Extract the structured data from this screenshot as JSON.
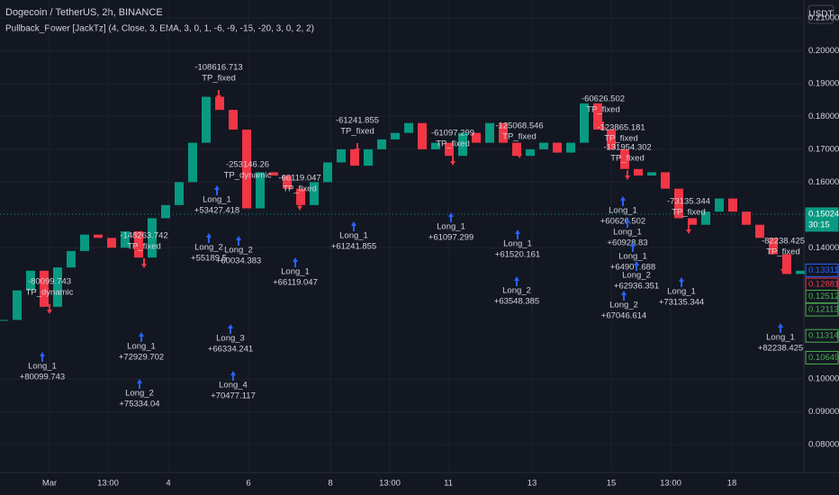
{
  "header": {
    "symbol": "Dogecoin / TetherUS, 2h, BINANCE",
    "indicator": "Pullback_Power [JackTz] (4, Close, 3, EMA, 3, 0, 1, -6, -9, -15, -20, 3, 0, 2, 2)",
    "currency": "USDT"
  },
  "chart": {
    "type": "candlestick",
    "up_color": "#089981",
    "down_color": "#f23645",
    "closes": [
      0.118,
      0.127,
      0.133,
      0.122,
      0.134,
      0.139,
      0.144,
      0.143,
      0.14,
      0.145,
      0.137,
      0.149,
      0.153,
      0.16,
      0.172,
      0.186,
      0.182,
      0.176,
      0.152,
      0.163,
      0.162,
      0.158,
      0.153,
      0.16,
      0.166,
      0.17,
      0.165,
      0.17,
      0.173,
      0.175,
      0.178,
      0.17,
      0.172,
      0.168,
      0.175,
      0.172,
      0.178,
      0.172,
      0.168,
      0.17,
      0.172,
      0.169,
      0.172,
      0.184,
      0.176,
      0.17,
      0.164,
      0.162,
      0.163,
      0.158,
      0.149,
      0.147,
      0.151,
      0.155,
      0.151,
      0.147,
      0.143,
      0.138,
      0.132,
      0.133
    ],
    "ylim": [
      0.0715,
      0.2155
    ],
    "yticks": [
      {
        "value": 0.21,
        "label": "0.21000"
      },
      {
        "value": 0.2,
        "label": "0.20000"
      },
      {
        "value": 0.19,
        "label": "0.19000"
      },
      {
        "value": 0.18,
        "label": "0.18000"
      },
      {
        "value": 0.17,
        "label": "0.17000"
      },
      {
        "value": 0.16,
        "label": "0.16000"
      },
      {
        "value": 0.14,
        "label": "0.14000"
      },
      {
        "value": 0.1,
        "label": "0.10000"
      },
      {
        "value": 0.09,
        "label": "0.09000"
      },
      {
        "value": 0.08,
        "label": "0.08000"
      }
    ],
    "xlabels": [
      "Mar",
      "13:00",
      "4",
      "6",
      "8",
      "13:00",
      "11",
      "13",
      "15",
      "13:00",
      "18"
    ],
    "price_badges": [
      {
        "value": 0.15024,
        "label": "0.15024",
        "color": "#089981",
        "timer": "30:15"
      },
      {
        "value": 0.13311,
        "label": "0.13311",
        "color": "#2962ff"
      },
      {
        "value": 0.12881,
        "label": "0.12881",
        "color": "#f23645"
      },
      {
        "value": 0.12512,
        "label": "0.12512",
        "color": "#4caf50"
      },
      {
        "value": 0.12113,
        "label": "0.12113",
        "color": "#4caf50"
      },
      {
        "value": 0.11314,
        "label": "0.11314",
        "color": "#4caf50"
      },
      {
        "value": 0.10649,
        "label": "0.10649",
        "color": "#4caf50"
      }
    ],
    "trade_labels": [
      [
        "-108616.713",
        "TP_fixed"
      ],
      [
        "-80099.743",
        "TP_dynamic"
      ],
      [
        "Long_1",
        "+80099.743"
      ],
      [
        "-148263.742",
        "TP_fixed"
      ],
      [
        "Long_1",
        "+72929.702"
      ],
      [
        "Long_2",
        "+75334.04"
      ],
      [
        "-253146.26",
        "TP_dynamic"
      ],
      [
        "Long_1",
        "+53427.418"
      ],
      [
        "Long_2",
        "+55189.5"
      ],
      [
        "Long_2",
        "+60034.383"
      ],
      [
        "Long_3",
        "+66334.241"
      ],
      [
        "Long_4",
        "+70477.117"
      ],
      [
        "-66119.047",
        "TP_fixed"
      ],
      [
        "Long_1",
        "+66119.047"
      ],
      [
        "-61241.855",
        "TP_fixed"
      ],
      [
        "Long_1",
        "+61241.855"
      ],
      [
        "-61097.299",
        "TP_fixed"
      ],
      [
        "Long_1",
        "+61097.299"
      ],
      [
        "-125068.546",
        "TP_fixed"
      ],
      [
        "Long_1",
        "+61520.161"
      ],
      [
        "Long_2",
        "+63548.385"
      ],
      [
        "-60626.502",
        "TP_fixed"
      ],
      [
        "-123865.181",
        "TP_fixed"
      ],
      [
        "-131954.302",
        "TP_fixed"
      ],
      [
        "Long_1",
        "+60626.502"
      ],
      [
        "Long_1",
        "+60928.83"
      ],
      [
        "Long_1",
        "+64907.688"
      ],
      [
        "Long_2",
        "+62936.351"
      ],
      [
        "Long_2",
        "+67046.614"
      ],
      [
        "-73135.344",
        "TP_fixed"
      ],
      [
        "Long_1",
        "+73135.344"
      ],
      [
        "-82238.425",
        "TP_fixed"
      ],
      [
        "Long_1",
        "+82238.425"
      ]
    ]
  }
}
